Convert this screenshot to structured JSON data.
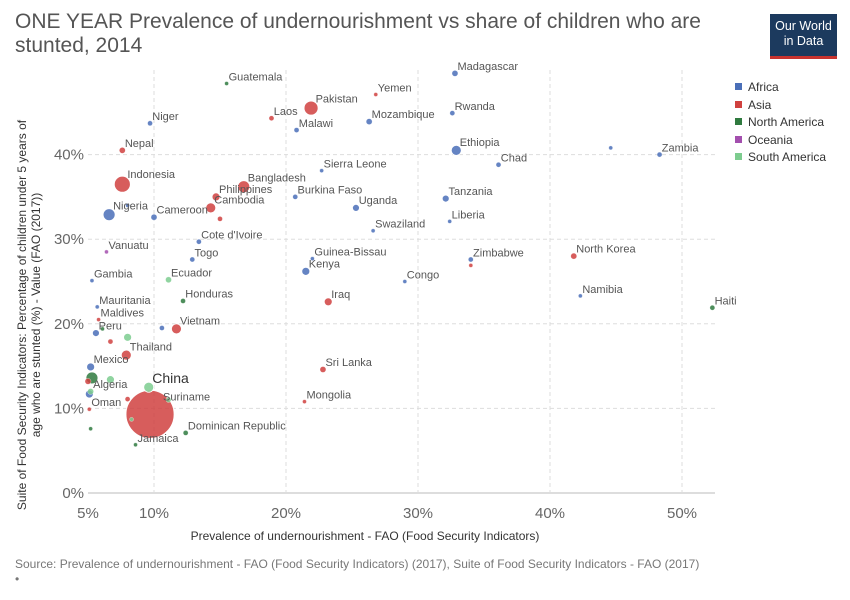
{
  "chart_data": {
    "type": "scatter",
    "title": "ONE YEAR Prevalence of undernourishment vs share of children who are stunted, 2014",
    "xlabel": "Prevalence of undernourishment - FAO (Food Security Indicators)",
    "ylabel_lines": [
      "Suite of Food Security Indicators: Percentage of children under 5 years of",
      "age who are stunted (%) - Value (FAO (2017))"
    ],
    "xlim": [
      5,
      52.5
    ],
    "ylim": [
      0,
      50
    ],
    "x_ticks": [
      5,
      10,
      20,
      30,
      40,
      50
    ],
    "x_tick_labels": [
      "5%",
      "10%",
      "20%",
      "30%",
      "40%",
      "50%"
    ],
    "y_ticks": [
      0,
      10,
      20,
      30,
      40
    ],
    "y_tick_labels": [
      "0%",
      "10%",
      "20%",
      "30%",
      "40%"
    ],
    "grid": true,
    "legend_position": "right",
    "series": [
      {
        "name": "Africa",
        "color": "#4a6fb8"
      },
      {
        "name": "Asia",
        "color": "#d0413f"
      },
      {
        "name": "North America",
        "color": "#2f7a3f"
      },
      {
        "name": "Oceania",
        "color": "#a34fae"
      },
      {
        "name": "South America",
        "color": "#7dcc8f"
      }
    ],
    "points": [
      {
        "label": "Madagascar",
        "x": 32.8,
        "y": 49.6,
        "group": 0,
        "r": 3
      },
      {
        "label": "Guatemala",
        "x": 15.5,
        "y": 48.4,
        "group": 2,
        "r": 2
      },
      {
        "label": "Yemen",
        "x": 26.8,
        "y": 47.1,
        "group": 1,
        "r": 2
      },
      {
        "label": "Pakistan",
        "x": 21.9,
        "y": 45.5,
        "group": 1,
        "r": 7
      },
      {
        "label": "Rwanda",
        "x": 32.6,
        "y": 44.9,
        "group": 0,
        "r": 2.5
      },
      {
        "label": "Laos",
        "x": 18.9,
        "y": 44.3,
        "group": 1,
        "r": 2.5
      },
      {
        "label": "Niger",
        "x": 9.7,
        "y": 43.7,
        "group": 0,
        "r": 2.5
      },
      {
        "label": "Mozambique",
        "x": 26.3,
        "y": 43.9,
        "group": 0,
        "r": 3
      },
      {
        "label": "Malawi",
        "x": 20.8,
        "y": 42.9,
        "group": 0,
        "r": 2.5
      },
      {
        "label": "Nepal",
        "x": 7.6,
        "y": 40.5,
        "group": 1,
        "r": 3
      },
      {
        "label": "Ethiopia",
        "x": 32.9,
        "y": 40.5,
        "group": 0,
        "r": 5
      },
      {
        "label": "",
        "x": 44.6,
        "y": 40.8,
        "group": 0,
        "r": 2
      },
      {
        "label": "Zambia",
        "x": 48.3,
        "y": 40.0,
        "group": 0,
        "r": 2.5
      },
      {
        "label": "Chad",
        "x": 36.1,
        "y": 38.8,
        "group": 0,
        "r": 2.5
      },
      {
        "label": "Sierra Leone",
        "x": 22.7,
        "y": 38.1,
        "group": 0,
        "r": 2
      },
      {
        "label": "Indonesia",
        "x": 7.6,
        "y": 36.5,
        "group": 1,
        "r": 8
      },
      {
        "label": "Bangladesh",
        "x": 16.8,
        "y": 36.2,
        "group": 1,
        "r": 6
      },
      {
        "label": "Burkina Faso",
        "x": 20.7,
        "y": 35.0,
        "group": 0,
        "r": 2.5
      },
      {
        "label": "Philippines",
        "x": 14.7,
        "y": 35.0,
        "group": 1,
        "r": 4
      },
      {
        "label": "Tanzania",
        "x": 32.1,
        "y": 34.8,
        "group": 0,
        "r": 3.5
      },
      {
        "label": "Nigeria",
        "x": 6.6,
        "y": 32.9,
        "group": 0,
        "r": 6
      },
      {
        "label": "",
        "x": 8.0,
        "y": 34.0,
        "group": 0,
        "r": 2
      },
      {
        "label": "Cameroon",
        "x": 10.0,
        "y": 32.6,
        "group": 0,
        "r": 3
      },
      {
        "label": "Uganda",
        "x": 25.3,
        "y": 33.7,
        "group": 0,
        "r": 3.5
      },
      {
        "label": "Cambodia",
        "x": 14.3,
        "y": 33.7,
        "group": 1,
        "r": 5
      },
      {
        "label": "",
        "x": 15.0,
        "y": 32.4,
        "group": 1,
        "r": 2.5
      },
      {
        "label": "Liberia",
        "x": 32.4,
        "y": 32.1,
        "group": 0,
        "r": 2
      },
      {
        "label": "Swaziland",
        "x": 26.6,
        "y": 31.0,
        "group": 0,
        "r": 2
      },
      {
        "label": "Cote d'Ivoire",
        "x": 13.4,
        "y": 29.7,
        "group": 0,
        "r": 2.5
      },
      {
        "label": "Vanuatu",
        "x": 6.4,
        "y": 28.5,
        "group": 3,
        "r": 2
      },
      {
        "label": "North Korea",
        "x": 41.8,
        "y": 28.0,
        "group": 1,
        "r": 3
      },
      {
        "label": "Guinea-Bissau",
        "x": 22.0,
        "y": 27.7,
        "group": 0,
        "r": 2
      },
      {
        "label": "Zimbabwe",
        "x": 34.0,
        "y": 27.6,
        "group": 0,
        "r": 2.5
      },
      {
        "label": "",
        "x": 34.0,
        "y": 26.9,
        "group": 1,
        "r": 2
      },
      {
        "label": "Togo",
        "x": 12.9,
        "y": 27.6,
        "group": 0,
        "r": 2.5
      },
      {
        "label": "Kenya",
        "x": 21.5,
        "y": 26.2,
        "group": 0,
        "r": 4
      },
      {
        "label": "Gambia",
        "x": 5.3,
        "y": 25.1,
        "group": 0,
        "r": 2
      },
      {
        "label": "Ecuador",
        "x": 11.1,
        "y": 25.2,
        "group": 4,
        "r": 3
      },
      {
        "label": "Congo",
        "x": 29.0,
        "y": 25.0,
        "group": 0,
        "r": 2
      },
      {
        "label": "Namibia",
        "x": 42.3,
        "y": 23.3,
        "group": 0,
        "r": 2
      },
      {
        "label": "Honduras",
        "x": 12.2,
        "y": 22.7,
        "group": 2,
        "r": 2.5
      },
      {
        "label": "Iraq",
        "x": 23.2,
        "y": 22.6,
        "group": 1,
        "r": 4
      },
      {
        "label": "Haiti",
        "x": 52.3,
        "y": 21.9,
        "group": 2,
        "r": 2.5
      },
      {
        "label": "Mauritania",
        "x": 5.7,
        "y": 22.0,
        "group": 0,
        "r": 2
      },
      {
        "label": "Maldives",
        "x": 5.8,
        "y": 20.5,
        "group": 1,
        "r": 2
      },
      {
        "label": "Vietnam",
        "x": 11.7,
        "y": 19.4,
        "group": 1,
        "r": 5
      },
      {
        "label": "",
        "x": 10.6,
        "y": 19.5,
        "group": 0,
        "r": 2.5
      },
      {
        "label": "",
        "x": 6.1,
        "y": 19.4,
        "group": 2,
        "r": 2
      },
      {
        "label": "Peru",
        "x": 5.6,
        "y": 18.9,
        "group": 0,
        "r": 3.5
      },
      {
        "label": "",
        "x": 8.0,
        "y": 18.4,
        "group": 4,
        "r": 4
      },
      {
        "label": "",
        "x": 6.7,
        "y": 17.9,
        "group": 1,
        "r": 2.5
      },
      {
        "label": "Thailand",
        "x": 7.9,
        "y": 16.3,
        "group": 1,
        "r": 5
      },
      {
        "label": "Sri Lanka",
        "x": 22.8,
        "y": 14.6,
        "group": 1,
        "r": 3
      },
      {
        "label": "Mexico",
        "x": 5.2,
        "y": 14.9,
        "group": 0,
        "r": 4
      },
      {
        "label": "",
        "x": 5.3,
        "y": 13.6,
        "group": 2,
        "r": 6
      },
      {
        "label": "",
        "x": 5.0,
        "y": 13.2,
        "group": 1,
        "r": 3
      },
      {
        "label": "",
        "x": 6.7,
        "y": 13.4,
        "group": 4,
        "r": 4
      },
      {
        "label": "Algeria",
        "x": 5.2,
        "y": 12.0,
        "group": 4,
        "r": 3
      },
      {
        "label": "China",
        "x": 9.6,
        "y": 12.5,
        "group": 4,
        "r": 5
      },
      {
        "label": "",
        "x": 5.1,
        "y": 11.7,
        "group": 0,
        "r": 4
      },
      {
        "label": "",
        "x": 8.0,
        "y": 11.1,
        "group": 1,
        "r": 2.5
      },
      {
        "label": "",
        "x": 11.1,
        "y": 11.0,
        "group": 4,
        "r": 2.5
      },
      {
        "label": "Mongolia",
        "x": 21.4,
        "y": 10.8,
        "group": 1,
        "r": 2
      },
      {
        "label": "Oman",
        "x": 5.1,
        "y": 9.9,
        "group": 1,
        "r": 2
      },
      {
        "label": "Suriname",
        "x": 9.7,
        "y": 9.3,
        "group": 1,
        "r": 24
      },
      {
        "label": "",
        "x": 8.3,
        "y": 8.7,
        "group": 4,
        "r": 2
      },
      {
        "label": "",
        "x": 5.2,
        "y": 7.6,
        "group": 2,
        "r": 2
      },
      {
        "label": "Dominican Republic",
        "x": 12.4,
        "y": 7.1,
        "group": 2,
        "r": 2.5
      },
      {
        "label": "Jamaica",
        "x": 8.6,
        "y": 5.7,
        "group": 2,
        "r": 2
      }
    ]
  },
  "source": "Source: Prevalence of undernourishment - FAO (Food Security Indicators) (2017), Suite of Food Security Indicators - FAO (2017)",
  "source_dot": "•",
  "logo": {
    "line1": "Our World",
    "line2": "in Data"
  }
}
